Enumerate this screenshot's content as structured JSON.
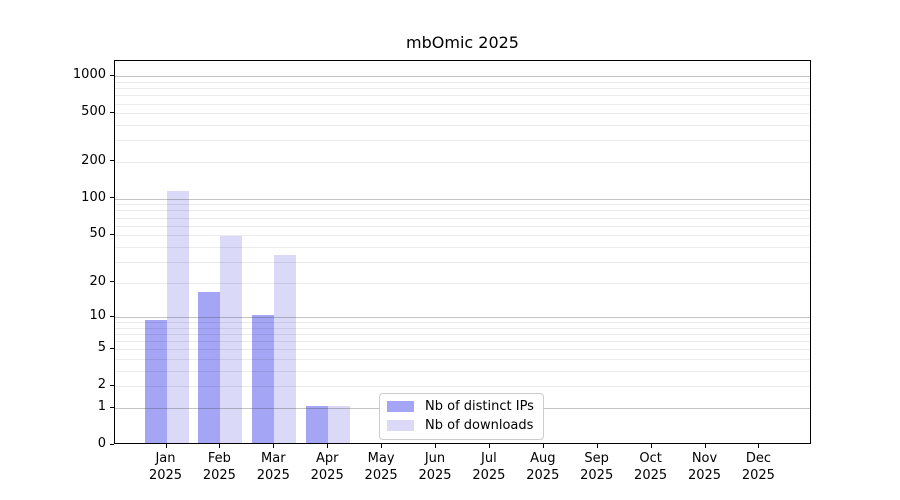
{
  "title": "mbOmic 2025",
  "chart_data": {
    "type": "bar",
    "title": "mbOmic 2025",
    "x_categories": [
      "Jan 2025",
      "Feb 2025",
      "Mar 2025",
      "Apr 2025",
      "May 2025",
      "Jun 2025",
      "Jul 2025",
      "Aug 2025",
      "Sep 2025",
      "Oct 2025",
      "Nov 2025",
      "Dec 2025"
    ],
    "series": [
      {
        "name": "Nb of distinct IPs",
        "color": "#a5a5f6",
        "values": [
          9,
          16,
          10,
          1,
          0,
          0,
          0,
          0,
          0,
          0,
          0,
          0
        ]
      },
      {
        "name": "Nb of downloads",
        "color": "#dadaf8",
        "values": [
          112,
          47,
          33,
          1,
          0,
          0,
          0,
          0,
          0,
          0,
          0,
          0
        ]
      }
    ],
    "y_ticks": [
      0,
      1,
      2,
      5,
      10,
      20,
      50,
      100,
      200,
      500,
      1000
    ],
    "y_scale": "log1p",
    "ylim": [
      0,
      1000
    ],
    "grid": true,
    "legend_position": "lower center"
  },
  "colors": {
    "grid_major": "#c6c6c6",
    "grid_minor": "#ebebeb",
    "axis": "#000000",
    "background": "#ffffff"
  }
}
